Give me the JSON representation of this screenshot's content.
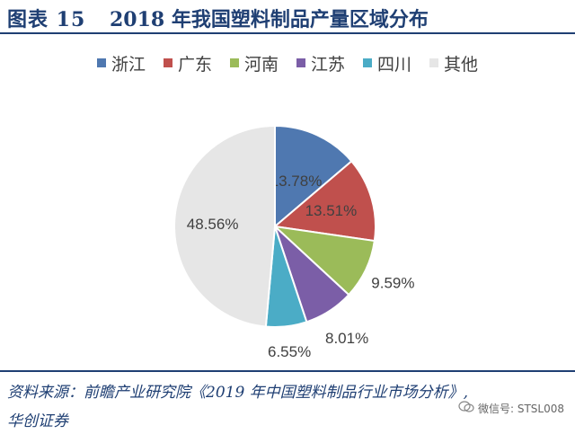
{
  "header": {
    "figure_label": "图表 15",
    "title": "2018 年我国塑料制品产量区域分布"
  },
  "chart_data": {
    "type": "pie",
    "title": "2018 年我国塑料制品产量区域分布",
    "unit": "%",
    "legend_position": "top",
    "categories": [
      "浙江",
      "广东",
      "河南",
      "江苏",
      "四川",
      "其他"
    ],
    "values": [
      13.78,
      13.51,
      9.59,
      8.01,
      6.55,
      48.56
    ],
    "data_labels": [
      "13.78%",
      "13.51%",
      "9.59%",
      "8.01%",
      "6.55%",
      "48.56%"
    ],
    "colors": [
      "#4f78b0",
      "#c0504d",
      "#9bbb59",
      "#7b5ea7",
      "#4bacc6",
      "#e6e6e6"
    ]
  },
  "footer": {
    "source_line1": "资料来源：前瞻产业研究院《2019 年中国塑料制品行业市场分析》,",
    "source_line2": "华创证券",
    "watermark": "微信号: STSL008"
  }
}
